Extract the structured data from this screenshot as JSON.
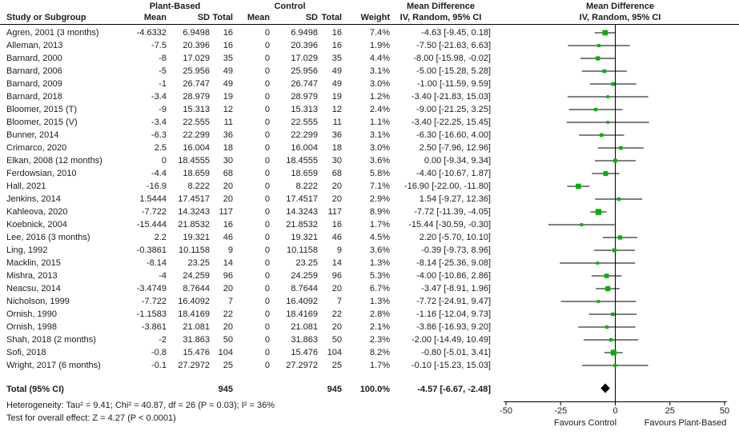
{
  "header": {
    "study_col": "Study or Subgroup",
    "group1": "Plant-Based",
    "group2": "Control",
    "mean": "Mean",
    "sd": "SD",
    "total": "Total",
    "weight": "Weight",
    "md_title": "Mean Difference",
    "md_sub": "IV, Random, 95% CI",
    "plot_md_title": "Mean Difference",
    "plot_md_sub": "IV, Random, 95% CI"
  },
  "chart_data": {
    "type": "forest",
    "effect_measure": "Mean Difference, IV, Random, 95% CI",
    "xlim": [
      -50,
      50
    ],
    "x_ticks": [
      -50,
      -25,
      0,
      25,
      50
    ],
    "favours_left": "Favours Control",
    "favours_right": "Favours Plant-Based",
    "marker_color": "#00b200",
    "line_color": "#000000",
    "studies": [
      {
        "name": "Agren, 2001 (3 months)",
        "mean": "-4.6332",
        "sd": "6.9498",
        "total": "16",
        "c_mean": "0",
        "c_sd": "6.9498",
        "c_total": "16",
        "weight": 7.4,
        "ci": "-4.63 [-9.45, 0.18]",
        "md": -4.63,
        "lo": -9.45,
        "hi": 0.18
      },
      {
        "name": "Alleman, 2013",
        "mean": "-7.5",
        "sd": "20.396",
        "total": "16",
        "c_mean": "0",
        "c_sd": "20.396",
        "c_total": "16",
        "weight": 1.9,
        "ci": "-7.50 [-21.63, 6.63]",
        "md": -7.5,
        "lo": -21.63,
        "hi": 6.63
      },
      {
        "name": "Barnard, 2000",
        "mean": "-8",
        "sd": "17.029",
        "total": "35",
        "c_mean": "0",
        "c_sd": "17.029",
        "c_total": "35",
        "weight": 4.4,
        "ci": "-8.00 [-15.98, -0.02]",
        "md": -8,
        "lo": -15.98,
        "hi": -0.02
      },
      {
        "name": "Barnard, 2006",
        "mean": "-5",
        "sd": "25.956",
        "total": "49",
        "c_mean": "0",
        "c_sd": "25.956",
        "c_total": "49",
        "weight": 3.1,
        "ci": "-5.00 [-15.28, 5.28]",
        "md": -5,
        "lo": -15.28,
        "hi": 5.28
      },
      {
        "name": "Barnard, 2009",
        "mean": "-1",
        "sd": "26.747",
        "total": "49",
        "c_mean": "0",
        "c_sd": "26.747",
        "c_total": "49",
        "weight": 3.0,
        "ci": "-1.00 [-11.59, 9.59]",
        "md": -1,
        "lo": -11.59,
        "hi": 9.59
      },
      {
        "name": "Barnard, 2018",
        "mean": "-3.4",
        "sd": "28.979",
        "total": "19",
        "c_mean": "0",
        "c_sd": "28.979",
        "c_total": "19",
        "weight": 1.2,
        "ci": "-3.40 [-21.83, 15.03]",
        "md": -3.4,
        "lo": -21.83,
        "hi": 15.03
      },
      {
        "name": "Bloomer, 2015 (T)",
        "mean": "-9",
        "sd": "15.313",
        "total": "12",
        "c_mean": "0",
        "c_sd": "15.313",
        "c_total": "12",
        "weight": 2.4,
        "ci": "-9.00 [-21.25, 3.25]",
        "md": -9,
        "lo": -21.25,
        "hi": 3.25
      },
      {
        "name": "Bloomer, 2015 (V)",
        "mean": "-3.4",
        "sd": "22.555",
        "total": "11",
        "c_mean": "0",
        "c_sd": "22.555",
        "c_total": "11",
        "weight": 1.1,
        "ci": "-3.40 [-22.25, 15.45]",
        "md": -3.4,
        "lo": -22.25,
        "hi": 15.45
      },
      {
        "name": "Bunner, 2014",
        "mean": "-6.3",
        "sd": "22.299",
        "total": "36",
        "c_mean": "0",
        "c_sd": "22.299",
        "c_total": "36",
        "weight": 3.1,
        "ci": "-6.30 [-16.60, 4.00]",
        "md": -6.3,
        "lo": -16.6,
        "hi": 4
      },
      {
        "name": "Crimarco, 2020",
        "mean": "2.5",
        "sd": "16.004",
        "total": "18",
        "c_mean": "0",
        "c_sd": "16.004",
        "c_total": "18",
        "weight": 3.0,
        "ci": "2.50 [-7.96, 12.96]",
        "md": 2.5,
        "lo": -7.96,
        "hi": 12.96
      },
      {
        "name": "Elkan, 2008 (12 months)",
        "mean": "0",
        "sd": "18.4555",
        "total": "30",
        "c_mean": "0",
        "c_sd": "18.4555",
        "c_total": "30",
        "weight": 3.6,
        "ci": "0.00 [-9.34, 9.34]",
        "md": 0,
        "lo": -9.34,
        "hi": 9.34
      },
      {
        "name": "Ferdowsian, 2010",
        "mean": "-4.4",
        "sd": "18.659",
        "total": "68",
        "c_mean": "0",
        "c_sd": "18.659",
        "c_total": "68",
        "weight": 5.8,
        "ci": "-4.40 [-10.67, 1.87]",
        "md": -4.4,
        "lo": -10.67,
        "hi": 1.87
      },
      {
        "name": "Hall, 2021",
        "mean": "-16.9",
        "sd": "8.222",
        "total": "20",
        "c_mean": "0",
        "c_sd": "8.222",
        "c_total": "20",
        "weight": 7.1,
        "ci": "-16.90 [-22.00, -11.80]",
        "md": -16.9,
        "lo": -22,
        "hi": -11.8
      },
      {
        "name": "Jenkins, 2014",
        "mean": "1.5444",
        "sd": "17.4517",
        "total": "20",
        "c_mean": "0",
        "c_sd": "17.4517",
        "c_total": "20",
        "weight": 2.9,
        "ci": "1.54 [-9.27, 12.36]",
        "md": 1.54,
        "lo": -9.27,
        "hi": 12.36
      },
      {
        "name": "Kahleova, 2020",
        "mean": "-7.722",
        "sd": "14.3243",
        "total": "117",
        "c_mean": "0",
        "c_sd": "14.3243",
        "c_total": "117",
        "weight": 8.9,
        "ci": "-7.72 [-11.39, -4.05]",
        "md": -7.72,
        "lo": -11.39,
        "hi": -4.05
      },
      {
        "name": "Koebnick, 2004",
        "mean": "-15.444",
        "sd": "21.8532",
        "total": "16",
        "c_mean": "0",
        "c_sd": "21.8532",
        "c_total": "16",
        "weight": 1.7,
        "ci": "-15.44 [-30.59, -0.30]",
        "md": -15.44,
        "lo": -30.59,
        "hi": -0.3
      },
      {
        "name": "Lee, 2016 (3 months)",
        "mean": "2.2",
        "sd": "19.321",
        "total": "46",
        "c_mean": "0",
        "c_sd": "19.321",
        "c_total": "46",
        "weight": 4.5,
        "ci": "2.20 [-5.70, 10.10]",
        "md": 2.2,
        "lo": -5.7,
        "hi": 10.1
      },
      {
        "name": "Ling, 1992",
        "mean": "-0.3861",
        "sd": "10.1158",
        "total": "9",
        "c_mean": "0",
        "c_sd": "10.1158",
        "c_total": "9",
        "weight": 3.6,
        "ci": "-0.39 [-9.73, 8.96]",
        "md": -0.39,
        "lo": -9.73,
        "hi": 8.96
      },
      {
        "name": "Macklin, 2015",
        "mean": "-8.14",
        "sd": "23.25",
        "total": "14",
        "c_mean": "0",
        "c_sd": "23.25",
        "c_total": "14",
        "weight": 1.3,
        "ci": "-8.14 [-25.36, 9.08]",
        "md": -8.14,
        "lo": -25.36,
        "hi": 9.08
      },
      {
        "name": "Mishra, 2013",
        "mean": "-4",
        "sd": "24.259",
        "total": "96",
        "c_mean": "0",
        "c_sd": "24.259",
        "c_total": "96",
        "weight": 5.3,
        "ci": "-4.00 [-10.86, 2.86]",
        "md": -4,
        "lo": -10.86,
        "hi": 2.86
      },
      {
        "name": "Neacsu, 2014",
        "mean": "-3.4749",
        "sd": "8.7644",
        "total": "20",
        "c_mean": "0",
        "c_sd": "8.7644",
        "c_total": "20",
        "weight": 6.7,
        "ci": "-3.47 [-8.91, 1.96]",
        "md": -3.47,
        "lo": -8.91,
        "hi": 1.96
      },
      {
        "name": "Nicholson, 1999",
        "mean": "-7.722",
        "sd": "16.4092",
        "total": "7",
        "c_mean": "0",
        "c_sd": "16.4092",
        "c_total": "7",
        "weight": 1.3,
        "ci": "-7.72 [-24.91, 9.47]",
        "md": -7.72,
        "lo": -24.91,
        "hi": 9.47
      },
      {
        "name": "Ornish, 1990",
        "mean": "-1.1583",
        "sd": "18.4169",
        "total": "22",
        "c_mean": "0",
        "c_sd": "18.4169",
        "c_total": "22",
        "weight": 2.8,
        "ci": "-1.16 [-12.04, 9.73]",
        "md": -1.16,
        "lo": -12.04,
        "hi": 9.73
      },
      {
        "name": "Ornish, 1998",
        "mean": "-3.861",
        "sd": "21.081",
        "total": "20",
        "c_mean": "0",
        "c_sd": "21.081",
        "c_total": "20",
        "weight": 2.1,
        "ci": "-3.86 [-16.93, 9.20]",
        "md": -3.86,
        "lo": -16.93,
        "hi": 9.2
      },
      {
        "name": "Shah, 2018 (2 months)",
        "mean": "-2",
        "sd": "31.863",
        "total": "50",
        "c_mean": "0",
        "c_sd": "31.863",
        "c_total": "50",
        "weight": 2.3,
        "ci": "-2.00 [-14.49, 10.49]",
        "md": -2,
        "lo": -14.49,
        "hi": 10.49
      },
      {
        "name": "Sofi, 2018",
        "mean": "-0.8",
        "sd": "15.476",
        "total": "104",
        "c_mean": "0",
        "c_sd": "15.476",
        "c_total": "104",
        "weight": 8.2,
        "ci": "-0.80 [-5.01, 3.41]",
        "md": -0.8,
        "lo": -5.01,
        "hi": 3.41
      },
      {
        "name": "Wright, 2017 (6 months)",
        "mean": "-0.1",
        "sd": "27.2972",
        "total": "25",
        "c_mean": "0",
        "c_sd": "27.2972",
        "c_total": "25",
        "weight": 1.7,
        "ci": "-0.10 [-15.23, 15.03]",
        "md": -0.1,
        "lo": -15.23,
        "hi": 15.03
      }
    ],
    "total": {
      "label": "Total (95% CI)",
      "total": "945",
      "c_total": "945",
      "weight": "100.0%",
      "ci": "-4.57 [-6.67, -2.48]",
      "md": -4.57,
      "lo": -6.67,
      "hi": -2.48
    },
    "heterogeneity": "Heterogeneity: Tau² = 9.41; Chi² = 40.87, df = 26 (P = 0.03); I² = 36%",
    "overall_effect": "Test for overall effect: Z = 4.27 (P < 0.0001)"
  }
}
